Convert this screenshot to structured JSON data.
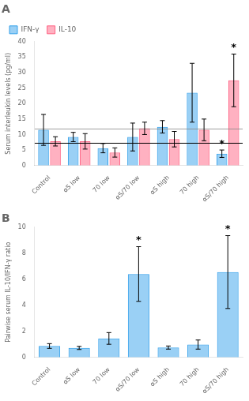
{
  "chart_data": [
    {
      "type": "bar",
      "panel_label": "A",
      "categories": [
        "Control",
        "αS low",
        "70 low",
        "αS/70 low",
        "αS high",
        "70 high",
        "αS/70 high"
      ],
      "series": [
        {
          "name": "IFN-γ",
          "values": [
            11.5,
            9.2,
            5.6,
            9.2,
            12.5,
            23.5,
            3.8
          ],
          "errors": [
            5.0,
            1.5,
            1.5,
            4.5,
            2.0,
            9.5,
            1.2
          ]
        },
        {
          "name": "IL-10",
          "values": [
            7.8,
            7.8,
            4.2,
            12.0,
            8.5,
            11.5,
            27.5
          ],
          "errors": [
            1.5,
            2.5,
            1.5,
            2.0,
            2.5,
            3.5,
            8.5
          ]
        }
      ],
      "ylabel": "Serum interleukin levels (pg/ml)",
      "ylim": [
        0,
        40
      ],
      "yticks": [
        0,
        5,
        10,
        15,
        20,
        25,
        30,
        35,
        40
      ],
      "hlines": [
        7.2,
        11.8
      ],
      "annotations": [
        {
          "text": "*",
          "series": "IL-10",
          "category": "αS/70 high"
        },
        {
          "text": "*",
          "series": "IFN-γ",
          "category": "αS/70 high"
        }
      ],
      "legend": "upper left",
      "grid": false
    },
    {
      "type": "bar",
      "panel_label": "B",
      "categories": [
        "Control",
        "αS low",
        "70 low",
        "αS/70 low",
        "αS high",
        "70 high",
        "αS/70 high"
      ],
      "values": [
        0.87,
        0.72,
        1.45,
        6.4,
        0.75,
        0.98,
        6.55
      ],
      "errors": [
        0.18,
        0.12,
        0.45,
        2.1,
        0.12,
        0.35,
        2.8
      ],
      "ylabel": "Pairwise serum IL-10/IFN-γ ratio",
      "ylim": [
        0,
        10
      ],
      "yticks": [
        0,
        2,
        4,
        6,
        8,
        10
      ],
      "annotations": [
        {
          "text": "*",
          "category": "αS/70 low"
        },
        {
          "text": "*",
          "category": "αS/70 high"
        }
      ],
      "grid": false
    }
  ]
}
